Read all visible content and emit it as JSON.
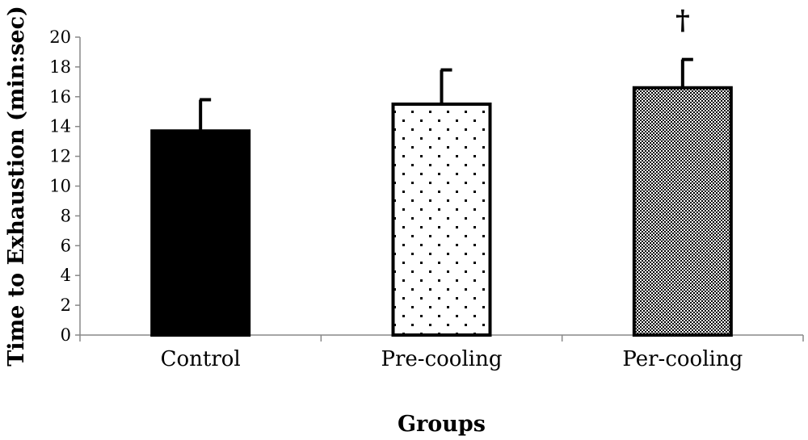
{
  "chart_data": {
    "type": "bar",
    "xlabel": "Groups",
    "ylabel": "Time to Exhaustion (min:sec)",
    "ylim": [
      0,
      20
    ],
    "yticks": [
      0,
      2,
      4,
      6,
      8,
      10,
      12,
      14,
      16,
      18,
      20
    ],
    "grid": false,
    "categories": [
      "Control",
      "Pre-cooling",
      "Per-cooling"
    ],
    "values": [
      13.7,
      15.5,
      16.6
    ],
    "error_bars": [
      2.1,
      2.3,
      1.9
    ],
    "bar_fills": [
      "solid-black",
      "sparse-dots",
      "dense-checker"
    ],
    "annotations": [
      {
        "category": "Per-cooling",
        "text": "†"
      }
    ]
  }
}
